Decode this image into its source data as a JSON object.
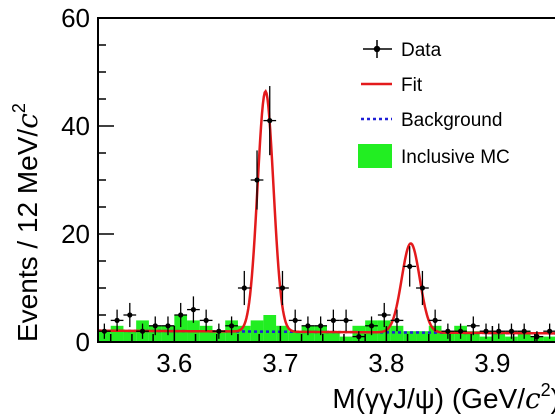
{
  "chart_data": {
    "type": "histogram-with-fit",
    "xlabel": {
      "main": "M(γγJ/ψ) (GeV/",
      "italic": "c",
      "sup": "2",
      "close": ")"
    },
    "ylabel": {
      "main": "Events / 12 MeV/",
      "italic": "c",
      "sup": "2"
    },
    "xlim": [
      3.528,
      3.96
    ],
    "ylim": [
      0,
      60
    ],
    "xticks": [
      3.6,
      3.7,
      3.8,
      3.9
    ],
    "xtick_labels": [
      "3.6",
      "3.7",
      "3.8",
      "3.9"
    ],
    "yticks": [
      0,
      20,
      40,
      60
    ],
    "ytick_labels": [
      "0",
      "20",
      "40",
      "60"
    ],
    "bin_width": 0.012,
    "legend": {
      "placement": "top-right",
      "entries": [
        {
          "key": "data",
          "label": "Data"
        },
        {
          "key": "fit",
          "label": "Fit"
        },
        {
          "key": "background",
          "label": "Background"
        },
        {
          "key": "mc",
          "label": "Inclusive MC"
        }
      ]
    },
    "colors": {
      "fit": "#e31a1c",
      "background": "#1f1fd6",
      "mc": "#22ee22",
      "data": "#000000"
    },
    "data_points": {
      "x": [
        3.534,
        3.546,
        3.558,
        3.57,
        3.582,
        3.594,
        3.606,
        3.618,
        3.63,
        3.642,
        3.654,
        3.666,
        3.678,
        3.69,
        3.702,
        3.714,
        3.726,
        3.738,
        3.75,
        3.762,
        3.774,
        3.786,
        3.798,
        3.81,
        3.822,
        3.834,
        3.846,
        3.858,
        3.87,
        3.882,
        3.894,
        3.906,
        3.918,
        3.93,
        3.942,
        3.954
      ],
      "y": [
        2,
        4,
        5,
        2,
        3,
        3,
        5,
        6,
        4,
        2,
        3,
        10,
        30,
        41,
        10,
        4,
        3,
        3,
        4,
        4,
        1,
        3,
        5,
        4,
        14,
        10,
        4,
        2,
        2,
        3,
        2,
        2,
        2,
        2,
        1,
        2
      ]
    },
    "inclusive_mc": {
      "x": [
        3.534,
        3.546,
        3.558,
        3.57,
        3.582,
        3.594,
        3.606,
        3.618,
        3.63,
        3.642,
        3.654,
        3.666,
        3.678,
        3.69,
        3.702,
        3.714,
        3.726,
        3.738,
        3.75,
        3.762,
        3.774,
        3.786,
        3.798,
        3.81,
        3.822,
        3.834,
        3.846,
        3.858,
        3.87,
        3.882,
        3.894,
        3.906,
        3.918,
        3.93,
        3.942,
        3.954
      ],
      "y": [
        2,
        3,
        2,
        4,
        3,
        3,
        5,
        4,
        3,
        2,
        4,
        3,
        4,
        5,
        3,
        2,
        3,
        3,
        2,
        1,
        3,
        4,
        4,
        3,
        2,
        2,
        3,
        2,
        3,
        2,
        1,
        2,
        1,
        2,
        1,
        1
      ]
    },
    "fit": {
      "bkg_start": 2.1,
      "bkg_end": 1.6,
      "peaks": [
        {
          "mean": 3.686,
          "sigma": 0.0075,
          "amplitude": 44.5
        },
        {
          "mean": 3.823,
          "sigma": 0.0085,
          "amplitude": 16.5
        }
      ]
    }
  }
}
